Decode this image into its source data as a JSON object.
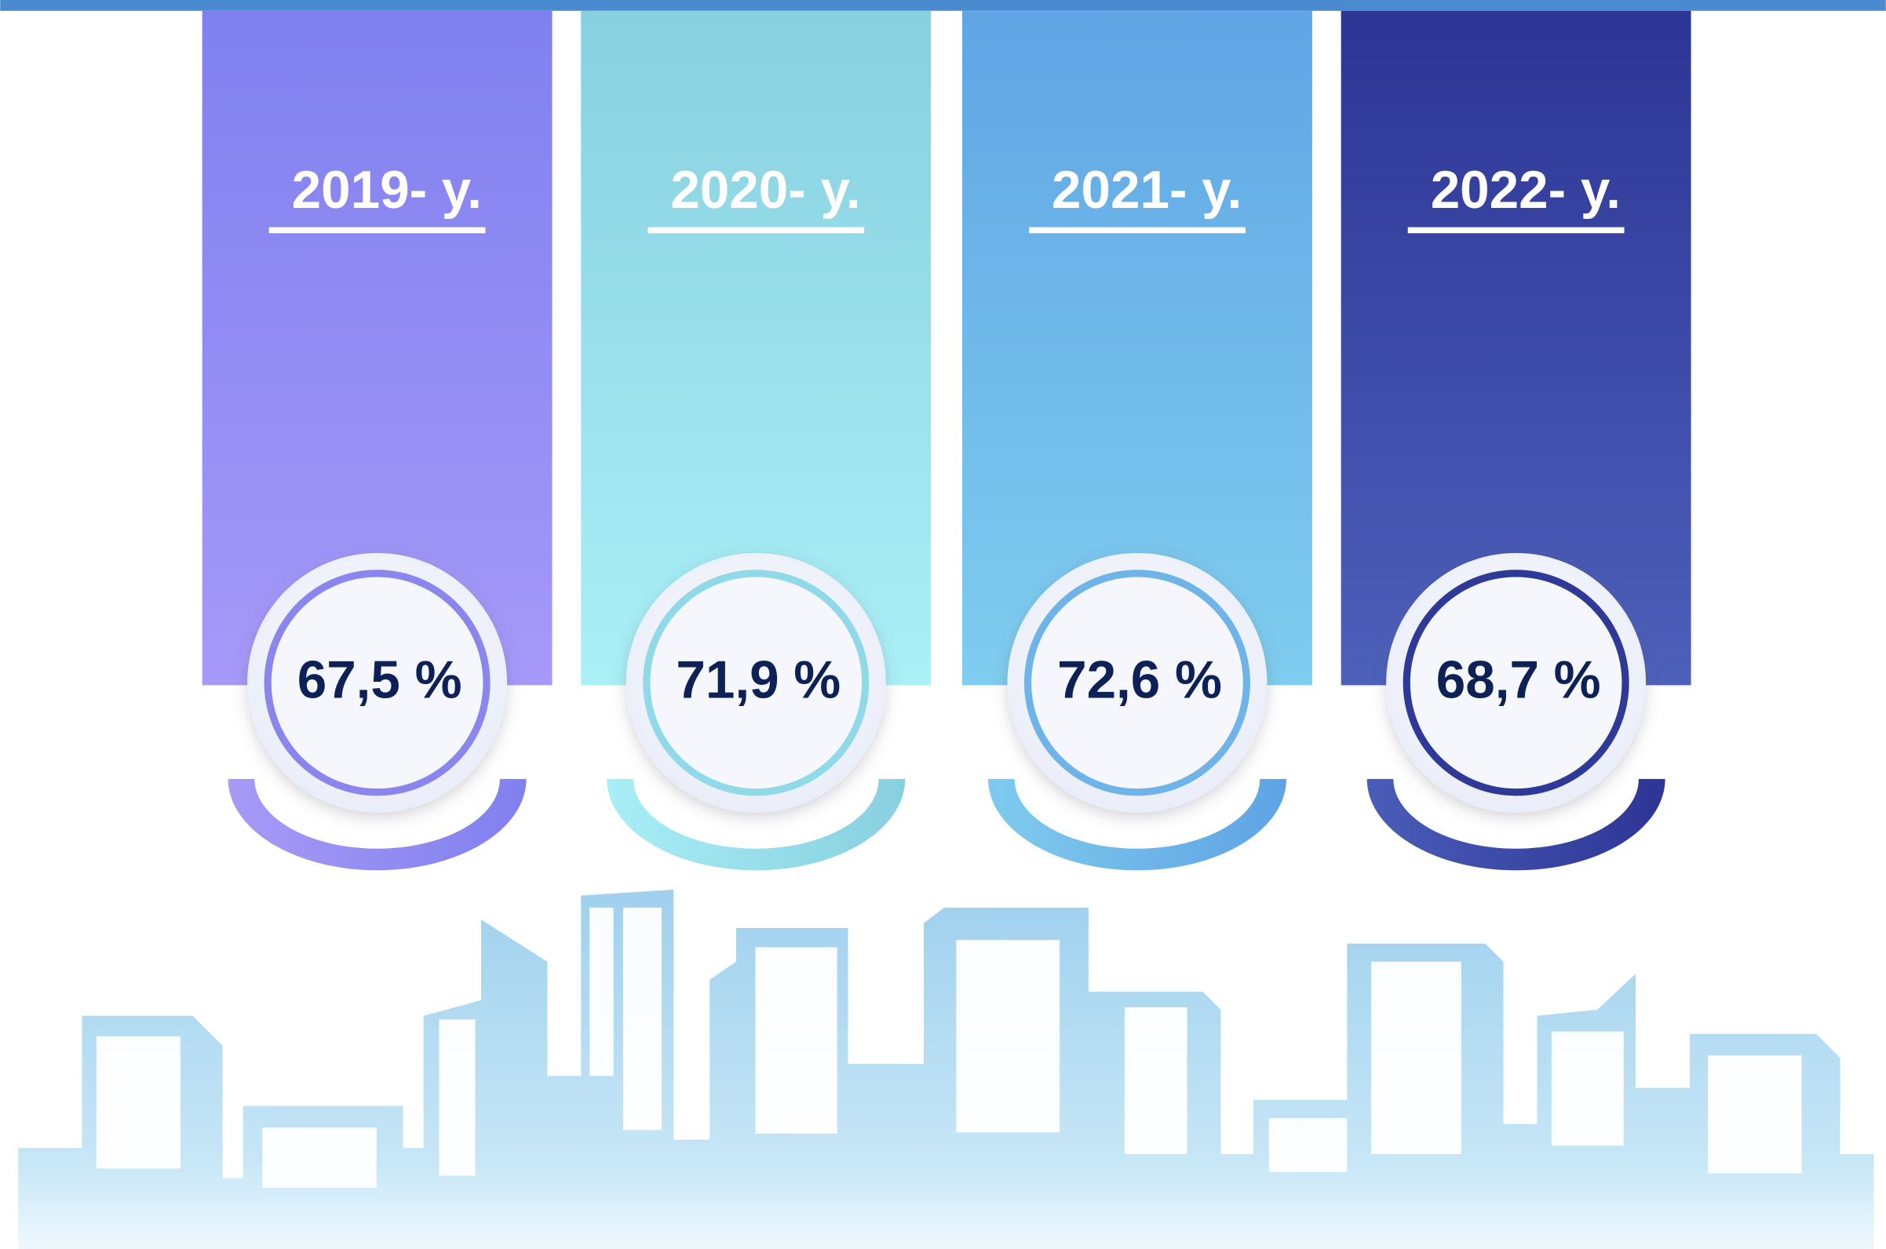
{
  "panels": [
    {
      "year": "2019- y.",
      "value": "67,5 %"
    },
    {
      "year": "2020- y.",
      "value": "71,9 %"
    },
    {
      "year": "2021- y.",
      "value": "72,6 %"
    },
    {
      "year": "2022- y.",
      "value": "68,7 %"
    }
  ]
}
